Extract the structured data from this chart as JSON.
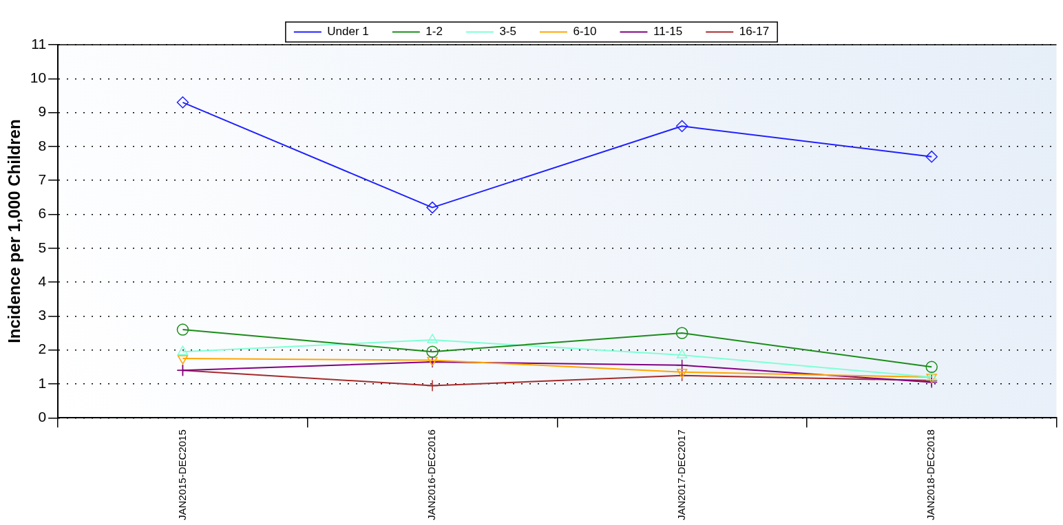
{
  "chart_data": {
    "type": "line",
    "ylabel": "Incidence per 1,000 Children",
    "categories": [
      "JAN2015-DEC2015",
      "JAN2016-DEC2016",
      "JAN2017-DEC2017",
      "JAN2018-DEC2018"
    ],
    "series": [
      {
        "name": "Under 1",
        "color": "#2020ff",
        "marker": "diamond",
        "values": [
          9.3,
          6.2,
          8.6,
          7.7
        ]
      },
      {
        "name": "1-2",
        "color": "#1a8c1a",
        "marker": "circle",
        "values": [
          2.6,
          1.95,
          2.5,
          1.5
        ]
      },
      {
        "name": "3-5",
        "color": "#7fffd4",
        "marker": "triangle",
        "values": [
          1.95,
          2.3,
          1.85,
          1.2
        ]
      },
      {
        "name": "6-10",
        "color": "#ffa500",
        "marker": "triangle-down",
        "values": [
          1.75,
          1.7,
          1.35,
          1.2
        ]
      },
      {
        "name": "11-15",
        "color": "#800080",
        "marker": "cross",
        "values": [
          1.4,
          1.65,
          1.55,
          1.05
        ]
      },
      {
        "name": "16-17",
        "color": "#a52a2a",
        "marker": "cross",
        "values": [
          1.4,
          0.95,
          1.25,
          1.1
        ]
      }
    ],
    "ylim": [
      0,
      11
    ],
    "yticks": [
      0,
      1,
      2,
      3,
      4,
      5,
      6,
      7,
      8,
      9,
      10,
      11
    ],
    "grid": "y",
    "legend": "top",
    "line_style": "solid"
  }
}
